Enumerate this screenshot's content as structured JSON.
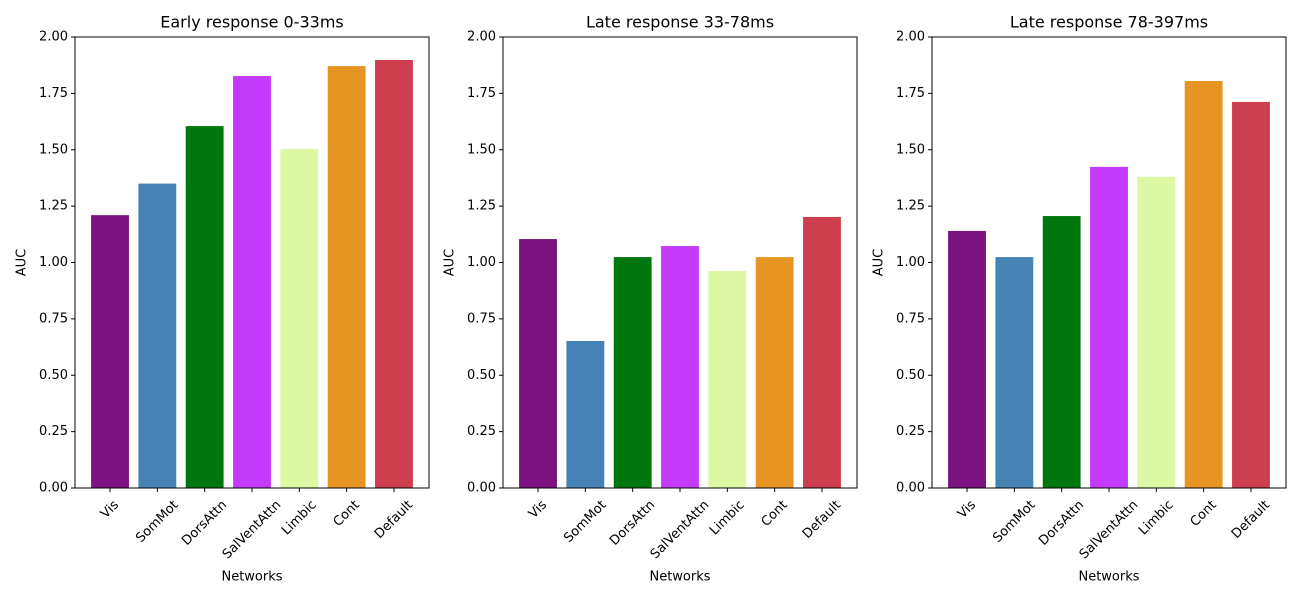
{
  "chart_data": [
    {
      "type": "bar",
      "title": "Early response 0-33ms",
      "xlabel": "Networks",
      "ylabel": "AUC",
      "categories": [
        "Vis",
        "SomMot",
        "DorsAttn",
        "SalVentAttn",
        "Limbic",
        "Cont",
        "Default"
      ],
      "values": [
        1.21,
        1.35,
        1.605,
        1.827,
        1.503,
        1.871,
        1.898
      ],
      "colors": [
        "#7b1280",
        "#4682b4",
        "#00760e",
        "#c43afa",
        "#dcf8a4",
        "#e69422",
        "#cd3e4e"
      ],
      "ylim": [
        0,
        2
      ],
      "yticks": [
        {
          "value": 0,
          "label": "0.00"
        },
        {
          "value": 0.25,
          "label": "0.25"
        },
        {
          "value": 0.5,
          "label": "0.50"
        },
        {
          "value": 0.75,
          "label": "0.75"
        },
        {
          "value": 1,
          "label": "1.00"
        },
        {
          "value": 1.25,
          "label": "1.25"
        },
        {
          "value": 1.5,
          "label": "1.50"
        },
        {
          "value": 1.75,
          "label": "1.75"
        },
        {
          "value": 2,
          "label": "2.00"
        }
      ],
      "grid": false
    },
    {
      "type": "bar",
      "title": "Late response 33-78ms",
      "xlabel": "Networks",
      "ylabel": "AUC",
      "categories": [
        "Vis",
        "SomMot",
        "DorsAttn",
        "SalVentAttn",
        "Limbic",
        "Cont",
        "Default"
      ],
      "values": [
        1.104,
        0.652,
        1.024,
        1.073,
        0.962,
        1.024,
        1.202
      ],
      "colors": [
        "#7b1280",
        "#4682b4",
        "#00760e",
        "#c43afa",
        "#dcf8a4",
        "#e69422",
        "#cd3e4e"
      ],
      "ylim": [
        0,
        2
      ],
      "yticks": [
        {
          "value": 0,
          "label": "0.00"
        },
        {
          "value": 0.25,
          "label": "0.25"
        },
        {
          "value": 0.5,
          "label": "0.50"
        },
        {
          "value": 0.75,
          "label": "0.75"
        },
        {
          "value": 1,
          "label": "1.00"
        },
        {
          "value": 1.25,
          "label": "1.25"
        },
        {
          "value": 1.5,
          "label": "1.50"
        },
        {
          "value": 1.75,
          "label": "1.75"
        },
        {
          "value": 2,
          "label": "2.00"
        }
      ],
      "grid": false
    },
    {
      "type": "bar",
      "title": "Late response 78-397ms",
      "xlabel": "Networks",
      "ylabel": "AUC",
      "categories": [
        "Vis",
        "SomMot",
        "DorsAttn",
        "SalVentAttn",
        "Limbic",
        "Cont",
        "Default"
      ],
      "values": [
        1.14,
        1.024,
        1.206,
        1.424,
        1.38,
        1.805,
        1.712
      ],
      "colors": [
        "#7b1280",
        "#4682b4",
        "#00760e",
        "#c43afa",
        "#dcf8a4",
        "#e69422",
        "#cd3e4e"
      ],
      "ylim": [
        0,
        2
      ],
      "yticks": [
        {
          "value": 0,
          "label": "0.00"
        },
        {
          "value": 0.25,
          "label": "0.25"
        },
        {
          "value": 0.5,
          "label": "0.50"
        },
        {
          "value": 0.75,
          "label": "0.75"
        },
        {
          "value": 1,
          "label": "1.00"
        },
        {
          "value": 1.25,
          "label": "1.25"
        },
        {
          "value": 1.5,
          "label": "1.50"
        },
        {
          "value": 1.75,
          "label": "1.75"
        },
        {
          "value": 2,
          "label": "2.00"
        }
      ],
      "grid": false
    }
  ]
}
